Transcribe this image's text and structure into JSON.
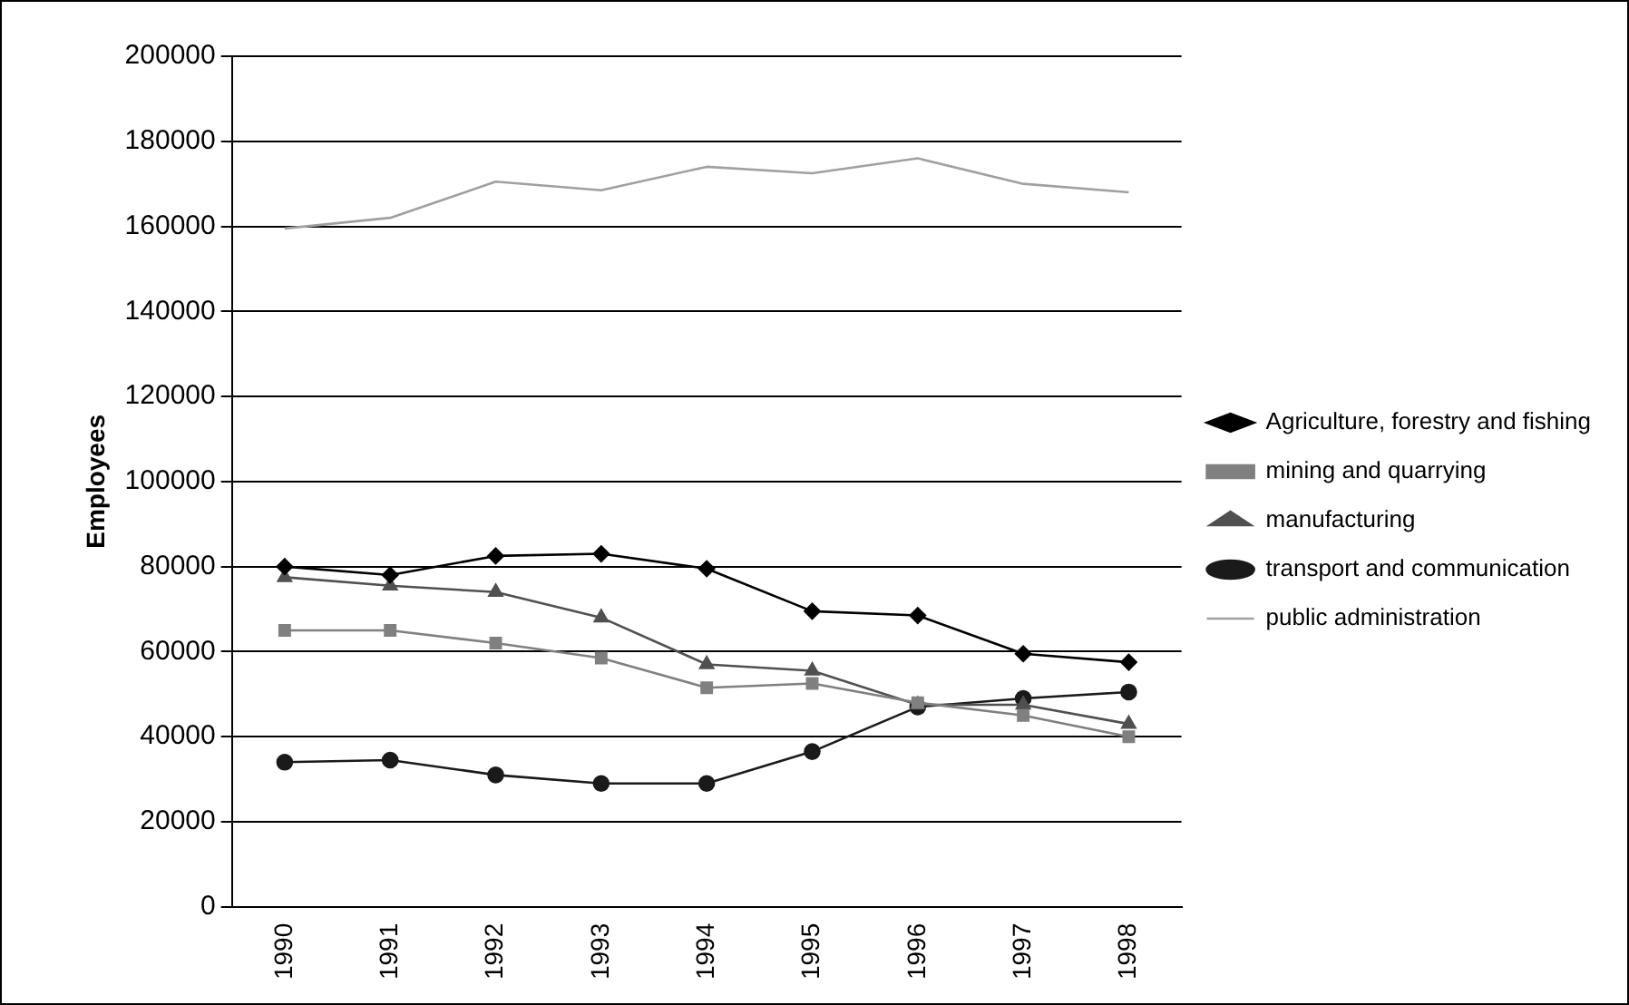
{
  "chart_data": {
    "type": "line",
    "ylabel": "Employees",
    "categories": [
      "1990",
      "1991",
      "1992",
      "1993",
      "1994",
      "1995",
      "1996",
      "1997",
      "1998"
    ],
    "series": [
      {
        "name": "Agriculture, forestry and fishing",
        "color": "#000000",
        "marker": "diamond",
        "values": [
          80000,
          78000,
          82500,
          83000,
          79500,
          69500,
          68500,
          59500,
          57500
        ]
      },
      {
        "name": "mining and quarrying",
        "color": "#808080",
        "marker": "square",
        "values": [
          65000,
          65000,
          62000,
          58500,
          51500,
          52500,
          48000,
          45000,
          40000
        ]
      },
      {
        "name": "manufacturing",
        "color": "#505050",
        "marker": "triangle",
        "values": [
          77500,
          75500,
          74000,
          68000,
          57000,
          55500,
          47500,
          47500,
          43000
        ]
      },
      {
        "name": "transport and communication",
        "color": "#1a1a1a",
        "marker": "circle",
        "values": [
          34000,
          34500,
          31000,
          29000,
          29000,
          36500,
          47000,
          49000,
          50500
        ]
      },
      {
        "name": "public administration",
        "color": "#a0a0a0",
        "marker": "none",
        "values": [
          159500,
          162000,
          170500,
          168500,
          174000,
          172500,
          176000,
          170000,
          168000
        ]
      }
    ],
    "ylim": [
      0,
      200000
    ],
    "yticks": [
      0,
      20000,
      40000,
      60000,
      80000,
      100000,
      120000,
      140000,
      160000,
      180000,
      200000
    ],
    "grid": "y",
    "legend": "right"
  }
}
